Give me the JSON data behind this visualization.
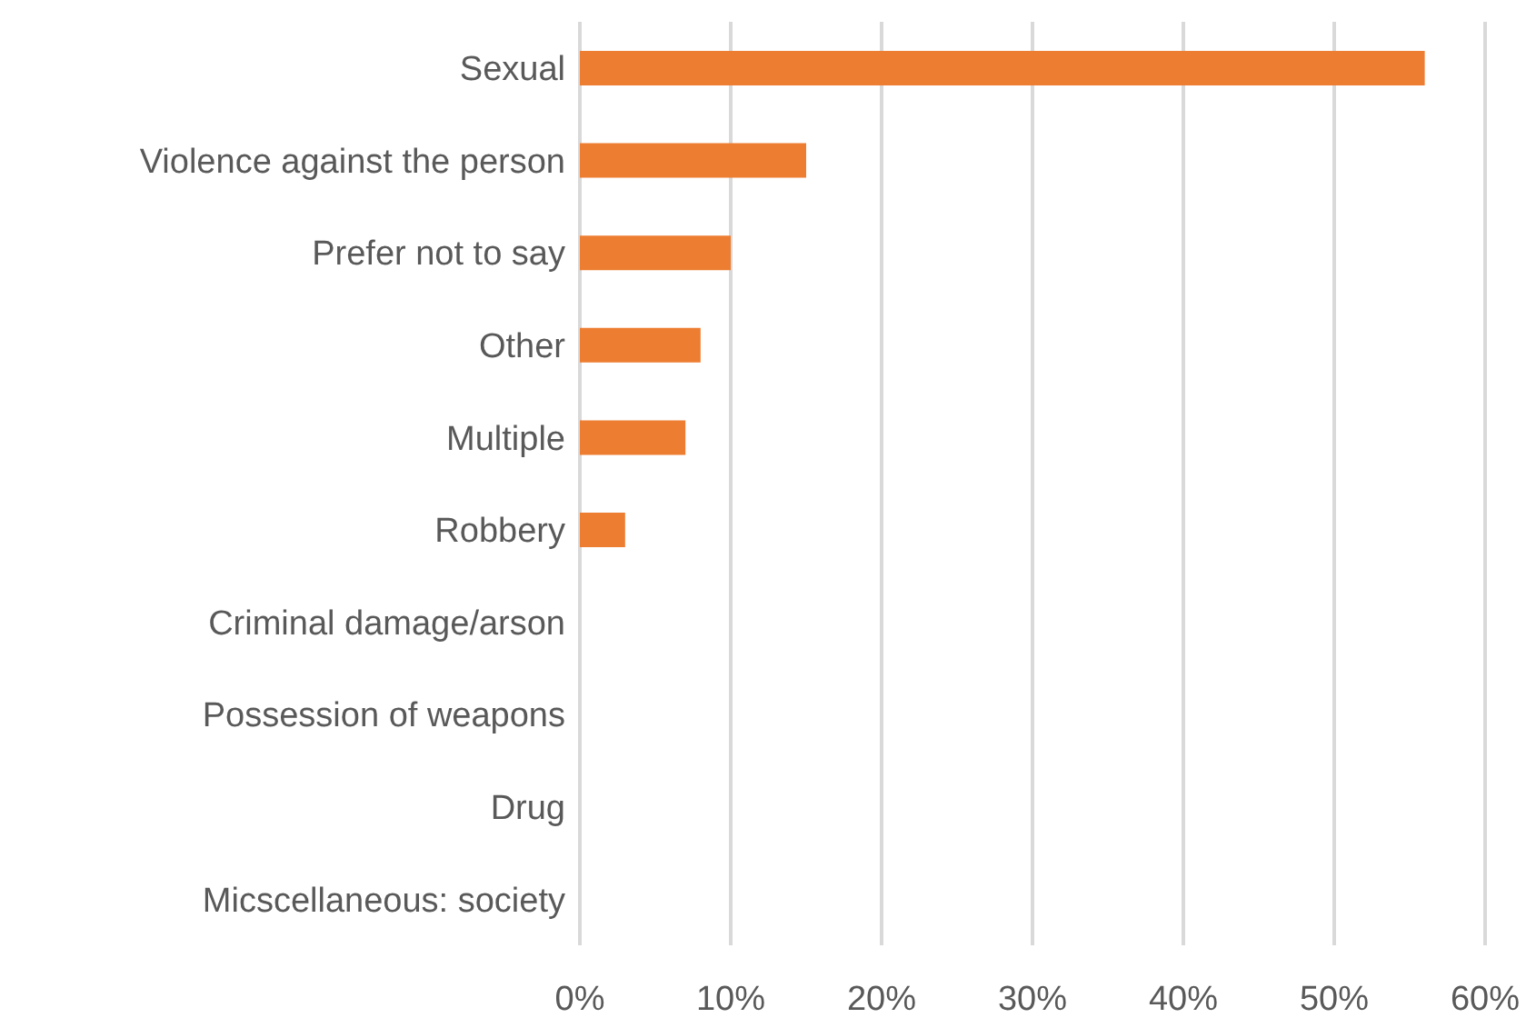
{
  "chart_data": {
    "type": "bar",
    "orientation": "horizontal",
    "categories": [
      "Sexual",
      "Violence against the person",
      "Prefer not to say",
      "Other",
      "Multiple",
      "Robbery",
      "Criminal damage/arson",
      "Possession of weapons",
      "Drug",
      "Micscellaneous: society"
    ],
    "values": [
      56,
      15,
      10,
      8,
      7,
      3,
      0,
      0,
      0,
      0
    ],
    "color": "#ed7d31",
    "xlim": [
      0,
      60
    ],
    "xticks": [
      {
        "value": 0,
        "label": "0%"
      },
      {
        "value": 10,
        "label": "10%"
      },
      {
        "value": 20,
        "label": "20%"
      },
      {
        "value": 30,
        "label": "30%"
      },
      {
        "value": 40,
        "label": "40%"
      },
      {
        "value": 50,
        "label": "50%"
      },
      {
        "value": 60,
        "label": "60%"
      }
    ],
    "grid": "x"
  }
}
